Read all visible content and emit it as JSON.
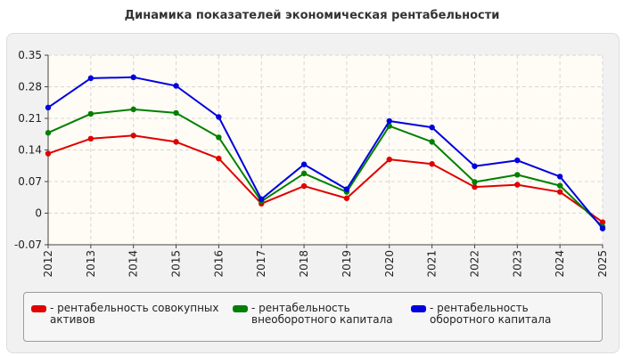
{
  "chart_data": {
    "type": "line",
    "title": "Динамика показателей экономическая рентабельности",
    "xlabel": "",
    "ylabel": "",
    "categories": [
      "2012",
      "2013",
      "2014",
      "2015",
      "2016",
      "2017",
      "2018",
      "2019",
      "2020",
      "2021",
      "2022",
      "2023",
      "2024",
      "2025"
    ],
    "ylim": [
      -0.07,
      0.35
    ],
    "yticks": [
      "-0.07",
      "0",
      "0.07",
      "0.14",
      "0.21",
      "0.28",
      "0.35"
    ],
    "grid": true,
    "legend_position": "bottom",
    "series": [
      {
        "name": "- рентабельность совокупных активов",
        "color": "#e00000",
        "values": [
          0.132,
          0.165,
          0.172,
          0.158,
          0.121,
          0.021,
          0.06,
          0.033,
          0.119,
          0.109,
          0.058,
          0.063,
          0.047,
          -0.02
        ]
      },
      {
        "name": "- рентабельность внеоборотного капитала",
        "color": "#008000",
        "values": [
          0.178,
          0.22,
          0.23,
          0.222,
          0.168,
          0.026,
          0.088,
          0.047,
          0.193,
          0.158,
          0.069,
          0.085,
          0.061,
          -0.03
        ]
      },
      {
        "name": "- рентабельность оборотного капитала",
        "color": "#0000e0",
        "values": [
          0.234,
          0.299,
          0.301,
          0.282,
          0.213,
          0.031,
          0.108,
          0.053,
          0.204,
          0.19,
          0.104,
          0.117,
          0.081,
          -0.034
        ]
      }
    ]
  }
}
